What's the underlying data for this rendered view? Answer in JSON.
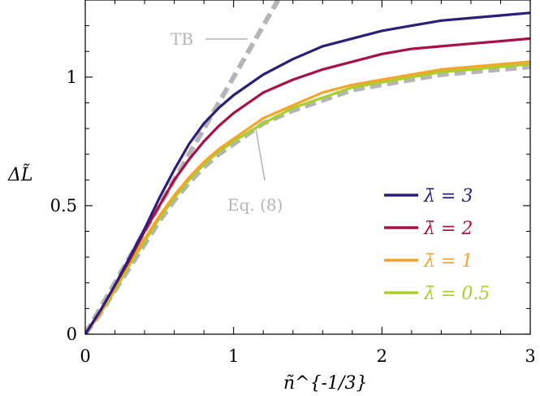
{
  "chart_data": {
    "type": "line",
    "xlabel": "ñ^{-1/3}",
    "ylabel": "ΔL̃",
    "xlim": [
      0,
      3
    ],
    "ylim": [
      0,
      1.3
    ],
    "x_ticks": [
      0,
      1,
      2,
      3
    ],
    "y_ticks": [
      0,
      0.5,
      1
    ],
    "grid": false,
    "legend_placement": "lower-right",
    "x": [
      0,
      0.1,
      0.2,
      0.3,
      0.4,
      0.5,
      0.6,
      0.7,
      0.8,
      0.9,
      1.0,
      1.2,
      1.4,
      1.6,
      1.8,
      2.0,
      2.2,
      2.4,
      2.6,
      2.8,
      3.0
    ],
    "series": [
      {
        "name": "λ̄ = 3",
        "color": "#2d1e78",
        "style": "solid",
        "values": [
          0.0,
          0.09,
          0.19,
          0.3,
          0.41,
          0.53,
          0.64,
          0.74,
          0.82,
          0.88,
          0.93,
          1.01,
          1.07,
          1.12,
          1.15,
          1.18,
          1.2,
          1.22,
          1.23,
          1.24,
          1.25
        ]
      },
      {
        "name": "λ̄ = 2",
        "color": "#a8104a",
        "style": "solid",
        "values": [
          0.0,
          0.09,
          0.19,
          0.29,
          0.4,
          0.5,
          0.6,
          0.68,
          0.75,
          0.81,
          0.86,
          0.94,
          0.99,
          1.03,
          1.06,
          1.09,
          1.11,
          1.12,
          1.13,
          1.14,
          1.15
        ]
      },
      {
        "name": "λ̄ = 1",
        "color": "#f2a52a",
        "style": "solid",
        "values": [
          0.0,
          0.08,
          0.18,
          0.28,
          0.37,
          0.46,
          0.54,
          0.61,
          0.67,
          0.72,
          0.76,
          0.84,
          0.89,
          0.94,
          0.97,
          0.99,
          1.01,
          1.03,
          1.04,
          1.05,
          1.06
        ]
      },
      {
        "name": "λ̄ = 0.5",
        "color": "#a8cf2a",
        "style": "solid",
        "values": [
          0.0,
          0.08,
          0.17,
          0.27,
          0.36,
          0.45,
          0.53,
          0.6,
          0.66,
          0.71,
          0.75,
          0.82,
          0.88,
          0.92,
          0.96,
          0.98,
          1.0,
          1.02,
          1.03,
          1.04,
          1.05
        ]
      },
      {
        "color": "#b5b5b5",
        "style": "dashed",
        "values": [
          0.0,
          0.08,
          0.17,
          0.26,
          0.35,
          0.44,
          0.52,
          0.59,
          0.65,
          0.7,
          0.74,
          0.82,
          0.87,
          0.91,
          0.95,
          0.97,
          0.99,
          1.01,
          1.02,
          1.03,
          1.04
        ]
      },
      {
        "color": "#b5b5b5",
        "style": "dashed",
        "x": [
          0,
          1.3
        ],
        "values": [
          0.0,
          1.3
        ]
      }
    ],
    "annotations": [
      {
        "text": "TB",
        "points_to": "TB dashed line"
      },
      {
        "text": "Eq. (8)",
        "points_to": "Eq. (8) dashed curve"
      }
    ]
  }
}
